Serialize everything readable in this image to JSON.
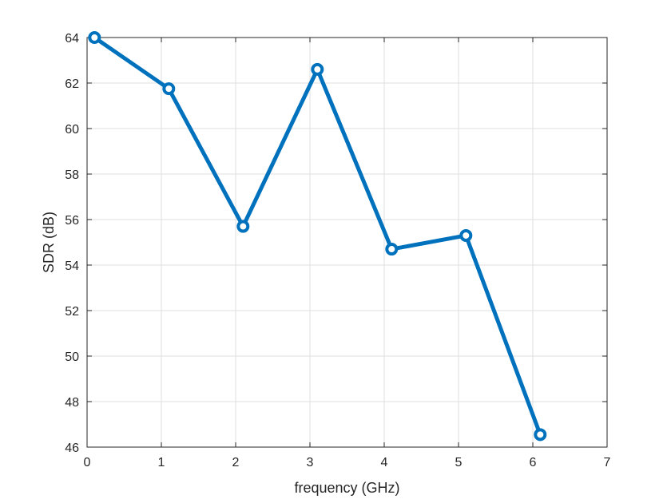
{
  "chart_data": {
    "type": "line",
    "title": "",
    "xlabel": "frequency (GHz)",
    "ylabel": "SDR (dB)",
    "xlim": [
      0,
      7
    ],
    "ylim": [
      46,
      64
    ],
    "xticks": [
      0,
      1,
      2,
      3,
      4,
      5,
      6,
      7
    ],
    "yticks": [
      46,
      48,
      50,
      52,
      54,
      56,
      58,
      60,
      62,
      64
    ],
    "grid": true,
    "series": [
      {
        "color": "#0072BD",
        "marker": "circle",
        "x": [
          0.1,
          1.1,
          2.1,
          3.1,
          4.1,
          5.1,
          6.1
        ],
        "y": [
          64.0,
          61.75,
          55.7,
          62.6,
          54.7,
          55.3,
          46.55
        ]
      }
    ]
  }
}
